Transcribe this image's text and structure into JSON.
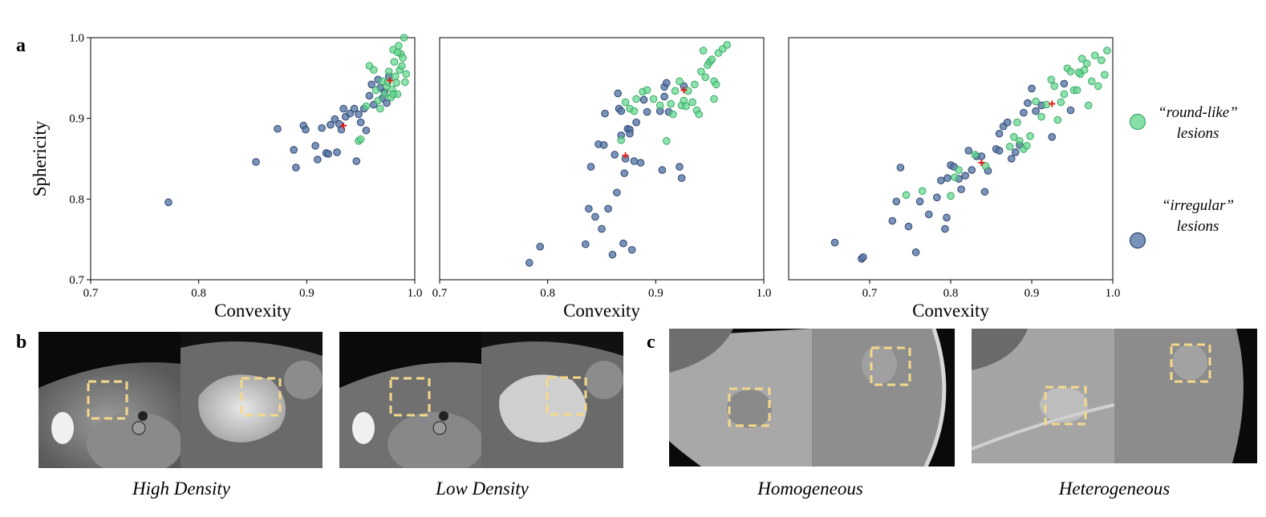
{
  "panel_labels": {
    "a": "a",
    "b": "b",
    "c": "c"
  },
  "legend": {
    "round_like": {
      "line1": "“round-like”",
      "line2": "lesions",
      "color": "#5ed68a"
    },
    "irregular": {
      "line1": "“irregular”",
      "line2": "lesions",
      "color": "#5878a8"
    }
  },
  "chart_data": [
    {
      "type": "scatter",
      "xlabel": "Convexity",
      "ylabel": "Sphericity",
      "xlim": [
        0.7,
        1.0
      ],
      "ylim": [
        0.7,
        1.0
      ],
      "xticks": [
        "0.7",
        "0.8",
        "0.9",
        "1.0"
      ],
      "yticks": [
        "0.7",
        "0.8",
        "0.9",
        "1.0"
      ],
      "series": [
        {
          "name": "irregular",
          "points": [
            [
              0.772,
              0.796
            ],
            [
              0.853,
              0.846
            ],
            [
              0.873,
              0.887
            ],
            [
              0.888,
              0.861
            ],
            [
              0.89,
              0.839
            ],
            [
              0.897,
              0.891
            ],
            [
              0.899,
              0.886
            ],
            [
              0.908,
              0.866
            ],
            [
              0.91,
              0.849
            ],
            [
              0.914,
              0.888
            ],
            [
              0.918,
              0.857
            ],
            [
              0.92,
              0.856
            ],
            [
              0.922,
              0.892
            ],
            [
              0.926,
              0.899
            ],
            [
              0.928,
              0.858
            ],
            [
              0.932,
              0.886
            ],
            [
              0.934,
              0.912
            ],
            [
              0.936,
              0.902
            ],
            [
              0.94,
              0.906
            ],
            [
              0.944,
              0.912
            ],
            [
              0.946,
              0.847
            ],
            [
              0.948,
              0.905
            ],
            [
              0.95,
              0.895
            ],
            [
              0.953,
              0.912
            ],
            [
              0.955,
              0.885
            ],
            [
              0.958,
              0.928
            ],
            [
              0.96,
              0.942
            ],
            [
              0.962,
              0.917
            ],
            [
              0.966,
              0.948
            ],
            [
              0.968,
              0.938
            ],
            [
              0.97,
              0.925
            ],
            [
              0.972,
              0.932
            ],
            [
              0.974,
              0.919
            ],
            [
              0.976,
              0.952
            ],
            [
              0.93,
              0.893
            ]
          ]
        },
        {
          "name": "round-like",
          "points": [
            [
              0.948,
              0.872
            ],
            [
              0.95,
              0.874
            ],
            [
              0.955,
              0.915
            ],
            [
              0.958,
              0.965
            ],
            [
              0.962,
              0.96
            ],
            [
              0.964,
              0.935
            ],
            [
              0.966,
              0.922
            ],
            [
              0.968,
              0.912
            ],
            [
              0.97,
              0.946
            ],
            [
              0.972,
              0.93
            ],
            [
              0.974,
              0.94
            ],
            [
              0.976,
              0.958
            ],
            [
              0.978,
              0.926
            ],
            [
              0.979,
              0.936
            ],
            [
              0.98,
              0.985
            ],
            [
              0.981,
              0.97
            ],
            [
              0.982,
              0.952
            ],
            [
              0.983,
              0.944
            ],
            [
              0.984,
              0.93
            ],
            [
              0.985,
              0.99
            ],
            [
              0.986,
              0.96
            ],
            [
              0.987,
              0.98
            ],
            [
              0.988,
              0.965
            ],
            [
              0.989,
              0.975
            ],
            [
              0.99,
              1.0
            ],
            [
              0.991,
              0.945
            ],
            [
              0.992,
              0.955
            ],
            [
              0.98,
              0.93
            ],
            [
              0.975,
              0.945
            ],
            [
              0.984,
              0.982
            ]
          ]
        },
        {
          "name": "centroid",
          "points": [
            [
              0.977,
              0.947
            ],
            [
              0.934,
              0.891
            ]
          ]
        }
      ]
    },
    {
      "type": "scatter",
      "xlabel": "Convexity",
      "ylabel": "",
      "xlim": [
        0.7,
        1.0
      ],
      "ylim": [
        0.7,
        1.0
      ],
      "xticks": [
        "0.7",
        "0.8",
        "0.9",
        "1.0"
      ],
      "yticks": [],
      "series": [
        {
          "name": "irregular",
          "points": [
            [
              0.783,
              0.721
            ],
            [
              0.793,
              0.741
            ],
            [
              0.835,
              0.744
            ],
            [
              0.838,
              0.788
            ],
            [
              0.84,
              0.84
            ],
            [
              0.844,
              0.778
            ],
            [
              0.847,
              0.868
            ],
            [
              0.85,
              0.763
            ],
            [
              0.852,
              0.867
            ],
            [
              0.853,
              0.906
            ],
            [
              0.856,
              0.788
            ],
            [
              0.86,
              0.731
            ],
            [
              0.862,
              0.855
            ],
            [
              0.864,
              0.808
            ],
            [
              0.865,
              0.931
            ],
            [
              0.866,
              0.912
            ],
            [
              0.868,
              0.909
            ],
            [
              0.87,
              0.745
            ],
            [
              0.871,
              0.832
            ],
            [
              0.872,
              0.85
            ],
            [
              0.874,
              0.887
            ],
            [
              0.876,
              0.886
            ],
            [
              0.878,
              0.737
            ],
            [
              0.88,
              0.847
            ],
            [
              0.882,
              0.895
            ],
            [
              0.886,
              0.845
            ],
            [
              0.889,
              0.923
            ],
            [
              0.892,
              0.908
            ],
            [
              0.904,
              0.909
            ],
            [
              0.906,
              0.836
            ],
            [
              0.908,
              0.939
            ],
            [
              0.91,
              0.944
            ],
            [
              0.912,
              0.908
            ],
            [
              0.922,
              0.84
            ],
            [
              0.924,
              0.826
            ],
            [
              0.926,
              0.94
            ],
            [
              0.908,
              0.927
            ],
            [
              0.868,
              0.879
            ],
            [
              0.876,
              0.881
            ]
          ]
        },
        {
          "name": "round-like",
          "points": [
            [
              0.868,
              0.873
            ],
            [
              0.872,
              0.92
            ],
            [
              0.876,
              0.912
            ],
            [
              0.88,
              0.909
            ],
            [
              0.882,
              0.924
            ],
            [
              0.888,
              0.933
            ],
            [
              0.892,
              0.935
            ],
            [
              0.898,
              0.924
            ],
            [
              0.904,
              0.916
            ],
            [
              0.91,
              0.872
            ],
            [
              0.914,
              0.918
            ],
            [
              0.918,
              0.934
            ],
            [
              0.922,
              0.946
            ],
            [
              0.924,
              0.916
            ],
            [
              0.926,
              0.922
            ],
            [
              0.928,
              0.915
            ],
            [
              0.93,
              0.934
            ],
            [
              0.934,
              0.92
            ],
            [
              0.938,
              0.91
            ],
            [
              0.94,
              0.905
            ],
            [
              0.942,
              0.958
            ],
            [
              0.944,
              0.984
            ],
            [
              0.946,
              0.951
            ],
            [
              0.948,
              0.966
            ],
            [
              0.95,
              0.97
            ],
            [
              0.952,
              0.973
            ],
            [
              0.954,
              0.946
            ],
            [
              0.956,
              0.942
            ],
            [
              0.958,
              0.981
            ],
            [
              0.962,
              0.986
            ],
            [
              0.966,
              0.991
            ],
            [
              0.936,
              0.942
            ],
            [
              0.916,
              0.905
            ],
            [
              0.954,
              0.924
            ]
          ]
        },
        {
          "name": "centroid",
          "points": [
            [
              0.926,
              0.935
            ],
            [
              0.872,
              0.854
            ]
          ]
        }
      ]
    },
    {
      "type": "scatter",
      "xlabel": "Convexity",
      "ylabel": "",
      "xlim": [
        0.6,
        1.0
      ],
      "ylim": [
        0.7,
        1.0
      ],
      "xticks": [
        "0.7",
        "0.8",
        "0.9",
        "1.0"
      ],
      "yticks": [],
      "series": [
        {
          "name": "irregular",
          "points": [
            [
              0.657,
              0.746
            ],
            [
              0.69,
              0.726
            ],
            [
              0.692,
              0.728
            ],
            [
              0.728,
              0.773
            ],
            [
              0.733,
              0.797
            ],
            [
              0.738,
              0.839
            ],
            [
              0.748,
              0.766
            ],
            [
              0.757,
              0.734
            ],
            [
              0.762,
              0.797
            ],
            [
              0.773,
              0.781
            ],
            [
              0.783,
              0.802
            ],
            [
              0.788,
              0.823
            ],
            [
              0.793,
              0.763
            ],
            [
              0.795,
              0.777
            ],
            [
              0.796,
              0.826
            ],
            [
              0.8,
              0.842
            ],
            [
              0.804,
              0.84
            ],
            [
              0.813,
              0.812
            ],
            [
              0.818,
              0.829
            ],
            [
              0.822,
              0.86
            ],
            [
              0.826,
              0.836
            ],
            [
              0.832,
              0.853
            ],
            [
              0.838,
              0.853
            ],
            [
              0.842,
              0.809
            ],
            [
              0.846,
              0.835
            ],
            [
              0.856,
              0.862
            ],
            [
              0.86,
              0.881
            ],
            [
              0.865,
              0.89
            ],
            [
              0.87,
              0.895
            ],
            [
              0.875,
              0.85
            ],
            [
              0.88,
              0.858
            ],
            [
              0.885,
              0.867
            ],
            [
              0.89,
              0.907
            ],
            [
              0.895,
              0.919
            ],
            [
              0.9,
              0.937
            ],
            [
              0.905,
              0.909
            ],
            [
              0.912,
              0.916
            ],
            [
              0.925,
              0.877
            ],
            [
              0.94,
              0.943
            ],
            [
              0.948,
              0.91
            ],
            [
              0.81,
              0.825
            ],
            [
              0.86,
              0.86
            ]
          ]
        },
        {
          "name": "round-like",
          "points": [
            [
              0.745,
              0.805
            ],
            [
              0.765,
              0.81
            ],
            [
              0.8,
              0.804
            ],
            [
              0.805,
              0.827
            ],
            [
              0.81,
              0.836
            ],
            [
              0.83,
              0.855
            ],
            [
              0.843,
              0.841
            ],
            [
              0.873,
              0.865
            ],
            [
              0.878,
              0.877
            ],
            [
              0.882,
              0.895
            ],
            [
              0.885,
              0.872
            ],
            [
              0.89,
              0.862
            ],
            [
              0.894,
              0.866
            ],
            [
              0.898,
              0.878
            ],
            [
              0.905,
              0.921
            ],
            [
              0.912,
              0.902
            ],
            [
              0.918,
              0.917
            ],
            [
              0.924,
              0.948
            ],
            [
              0.928,
              0.94
            ],
            [
              0.932,
              0.898
            ],
            [
              0.936,
              0.92
            ],
            [
              0.94,
              0.93
            ],
            [
              0.944,
              0.962
            ],
            [
              0.948,
              0.958
            ],
            [
              0.952,
              0.935
            ],
            [
              0.956,
              0.935
            ],
            [
              0.96,
              0.955
            ],
            [
              0.962,
              0.974
            ],
            [
              0.965,
              0.96
            ],
            [
              0.968,
              0.968
            ],
            [
              0.97,
              0.916
            ],
            [
              0.974,
              0.946
            ],
            [
              0.978,
              0.978
            ],
            [
              0.982,
              0.94
            ],
            [
              0.986,
              0.972
            ],
            [
              0.99,
              0.954
            ],
            [
              0.993,
              0.984
            ],
            [
              0.958,
              0.957
            ]
          ]
        },
        {
          "name": "centroid",
          "points": [
            [
              0.925,
              0.918
            ],
            [
              0.838,
              0.845
            ]
          ]
        }
      ]
    }
  ],
  "captions": {
    "b_left": "High Density",
    "b_right": "Low Density",
    "c_left": "Homogeneous",
    "c_right": "Heterogeneous"
  },
  "colors": {
    "round": "#5ed68a",
    "irregular": "#5878a8",
    "centroid": "#e0201c",
    "roi": "#f5d88a"
  }
}
